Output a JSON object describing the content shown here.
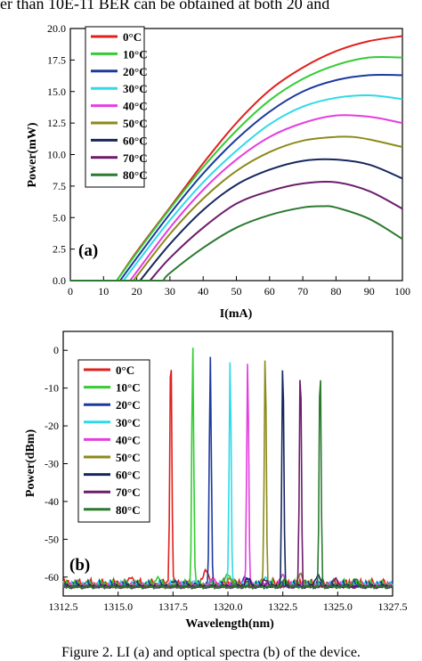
{
  "header_text": "er than 10E-11 BER can be obtained at both 20 and",
  "caption": "Figure 2. LI (a) and optical spectra (b) of the device.",
  "chart_data": [
    {
      "type": "line",
      "panel_label": "(a)",
      "xlabel": "I(mA)",
      "ylabel": "Power(mW)",
      "xlim": [
        0,
        100
      ],
      "ylim": [
        0,
        20
      ],
      "xticks": [
        0,
        10,
        20,
        30,
        40,
        50,
        60,
        70,
        80,
        90,
        100
      ],
      "yticks": [
        0.0,
        2.5,
        5.0,
        7.5,
        10.0,
        12.5,
        15.0,
        17.5,
        20.0
      ],
      "ytick_labels": [
        "0.0",
        "2.5",
        "5.0",
        "7.5",
        "10.0",
        "12.5",
        "15.0",
        "17.5",
        "20.0"
      ],
      "grid": false,
      "legend_position": "top-left",
      "series": [
        {
          "name": "0°C",
          "color": "#e0201c",
          "threshold": 14,
          "x": [
            14,
            20,
            30,
            40,
            50,
            60,
            70,
            80,
            90,
            100
          ],
          "values": [
            0,
            2.3,
            5.8,
            9.3,
            12.5,
            15.1,
            16.9,
            18.2,
            19.0,
            19.4
          ]
        },
        {
          "name": "10°C",
          "color": "#33cc33",
          "threshold": 14,
          "x": [
            14,
            20,
            30,
            40,
            50,
            60,
            70,
            80,
            90,
            100
          ],
          "values": [
            0,
            2.2,
            5.7,
            9.0,
            11.9,
            14.3,
            16.0,
            17.1,
            17.7,
            17.7
          ]
        },
        {
          "name": "20°C",
          "color": "#1c3a9e",
          "threshold": 15,
          "x": [
            15,
            20,
            30,
            40,
            50,
            60,
            70,
            80,
            90,
            100
          ],
          "values": [
            0,
            1.8,
            5.3,
            8.5,
            11.2,
            13.4,
            15.0,
            15.9,
            16.3,
            16.3
          ]
        },
        {
          "name": "30°C",
          "color": "#2fd9e8",
          "threshold": 16,
          "x": [
            16,
            20,
            30,
            40,
            50,
            60,
            70,
            80,
            90,
            100
          ],
          "values": [
            0,
            1.4,
            4.8,
            7.8,
            10.3,
            12.4,
            13.8,
            14.5,
            14.7,
            14.4
          ]
        },
        {
          "name": "40°C",
          "color": "#e53ee0",
          "threshold": 18,
          "x": [
            18,
            20,
            30,
            40,
            50,
            60,
            70,
            80,
            90,
            100
          ],
          "values": [
            0,
            0.7,
            4.2,
            7.2,
            9.6,
            11.4,
            12.5,
            13.1,
            13.0,
            12.5
          ]
        },
        {
          "name": "50°C",
          "color": "#8c8a1a",
          "threshold": 19,
          "x": [
            19,
            30,
            40,
            50,
            60,
            70,
            80,
            85,
            90,
            100
          ],
          "values": [
            0,
            3.7,
            6.5,
            8.7,
            10.2,
            11.1,
            11.4,
            11.4,
            11.2,
            10.6
          ]
        },
        {
          "name": "60°C",
          "color": "#15275e",
          "threshold": 21,
          "x": [
            21,
            30,
            40,
            50,
            60,
            70,
            80,
            90,
            100
          ],
          "values": [
            0,
            2.9,
            5.6,
            7.6,
            8.8,
            9.5,
            9.6,
            9.2,
            8.1
          ]
        },
        {
          "name": "70°C",
          "color": "#6d1c6b",
          "threshold": 24,
          "x": [
            24,
            30,
            40,
            50,
            60,
            70,
            80,
            90,
            100
          ],
          "values": [
            0,
            1.8,
            4.2,
            6.1,
            7.1,
            7.7,
            7.8,
            7.1,
            5.7
          ]
        },
        {
          "name": "80°C",
          "color": "#2b7a2f",
          "threshold": 28,
          "x": [
            28,
            30,
            40,
            50,
            60,
            70,
            76,
            80,
            90,
            100
          ],
          "values": [
            0,
            0.6,
            2.6,
            4.2,
            5.2,
            5.8,
            5.9,
            5.8,
            4.9,
            3.3
          ]
        }
      ]
    },
    {
      "type": "line",
      "panel_label": "(b)",
      "xlabel": "Wavelength(nm)",
      "ylabel": "Power(dBm)",
      "xlim": [
        1312.5,
        1327.5
      ],
      "ylim": [
        -65,
        5
      ],
      "xticks": [
        1312.5,
        1315.0,
        1317.5,
        1320.0,
        1322.5,
        1325.0,
        1327.5
      ],
      "xtick_labels": [
        "1312.5",
        "1315.0",
        "1317.5",
        "1320.0",
        "1322.5",
        "1325.0",
        "1327.5"
      ],
      "yticks": [
        0,
        -10,
        -20,
        -30,
        -40,
        -50,
        -60
      ],
      "grid": false,
      "legend_position": "top-left",
      "noise_floor_dbm": -62,
      "series": [
        {
          "name": "0°C",
          "color": "#e0201c",
          "peak_nm": 1317.4,
          "peak_dbm": 2,
          "side_modes": [
            [
              1315.6,
              -60
            ],
            [
              1319.0,
              -58
            ]
          ]
        },
        {
          "name": "10°C",
          "color": "#33cc33",
          "peak_nm": 1318.4,
          "peak_dbm": 2,
          "side_modes": [
            [
              1316.8,
              -60
            ],
            [
              1320.0,
              -59
            ]
          ]
        },
        {
          "name": "20°C",
          "color": "#1c3a9e",
          "peak_nm": 1319.2,
          "peak_dbm": -2,
          "side_modes": [
            [
              1317.6,
              -61
            ],
            [
              1320.8,
              -60
            ]
          ]
        },
        {
          "name": "30°C",
          "color": "#2fd9e8",
          "peak_nm": 1320.1,
          "peak_dbm": -2,
          "side_modes": [
            [
              1318.5,
              -61
            ],
            [
              1321.7,
              -60
            ]
          ]
        },
        {
          "name": "40°C",
          "color": "#e53ee0",
          "peak_nm": 1320.9,
          "peak_dbm": 0,
          "side_modes": [
            [
              1319.3,
              -60
            ],
            [
              1322.5,
              -59
            ]
          ]
        },
        {
          "name": "50°C",
          "color": "#8c8a1a",
          "peak_nm": 1321.7,
          "peak_dbm": 1,
          "side_modes": [
            [
              1320.1,
              -60
            ],
            [
              1323.3,
              -59
            ]
          ]
        },
        {
          "name": "60°C",
          "color": "#15275e",
          "peak_nm": 1322.5,
          "peak_dbm": 1,
          "side_modes": [
            [
              1320.9,
              -60
            ],
            [
              1324.1,
              -59
            ]
          ]
        },
        {
          "name": "70°C",
          "color": "#6d1c6b",
          "peak_nm": 1323.3,
          "peak_dbm": 0,
          "side_modes": [
            [
              1321.7,
              -60
            ],
            [
              1324.9,
              -60
            ]
          ]
        },
        {
          "name": "80°C",
          "color": "#2b7a2f",
          "peak_nm": 1324.2,
          "peak_dbm": -1,
          "side_modes": [
            [
              1322.6,
              -60
            ],
            [
              1325.8,
              -60
            ]
          ]
        }
      ]
    }
  ]
}
